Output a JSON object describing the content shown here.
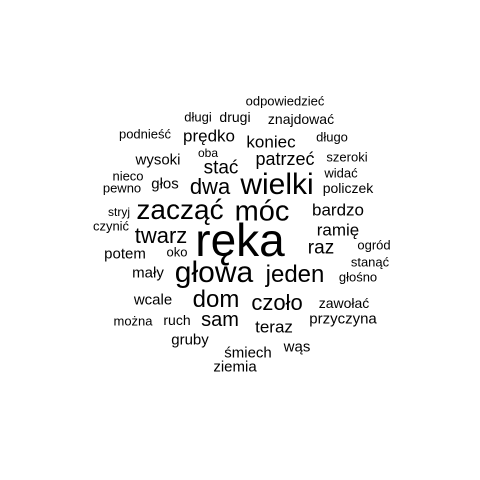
{
  "cloud": {
    "text_color": "#000000",
    "background": "#ffffff",
    "words": [
      "ręka",
      "głowa",
      "zacząć",
      "móc",
      "wielki",
      "dom",
      "jeden",
      "czoło",
      "twarz",
      "sam",
      "dwa",
      "stać",
      "patrzeć",
      "koniec",
      "bardzo",
      "raz",
      "teraz",
      "ramię",
      "prędko",
      "głos",
      "wysoki",
      "potem",
      "mały",
      "wcale",
      "gruby",
      "ruch",
      "zawołać",
      "przyczyna",
      "śmiech",
      "wąs",
      "ziemia",
      "odpowiedzieć",
      "znajdować",
      "długi",
      "drugi",
      "podnieść",
      "długo",
      "szeroki",
      "oba",
      "widać",
      "policzek",
      "nieco",
      "pewno",
      "stryj",
      "czynić",
      "oko",
      "ogród",
      "stanąć",
      "głośno",
      "można"
    ]
  }
}
